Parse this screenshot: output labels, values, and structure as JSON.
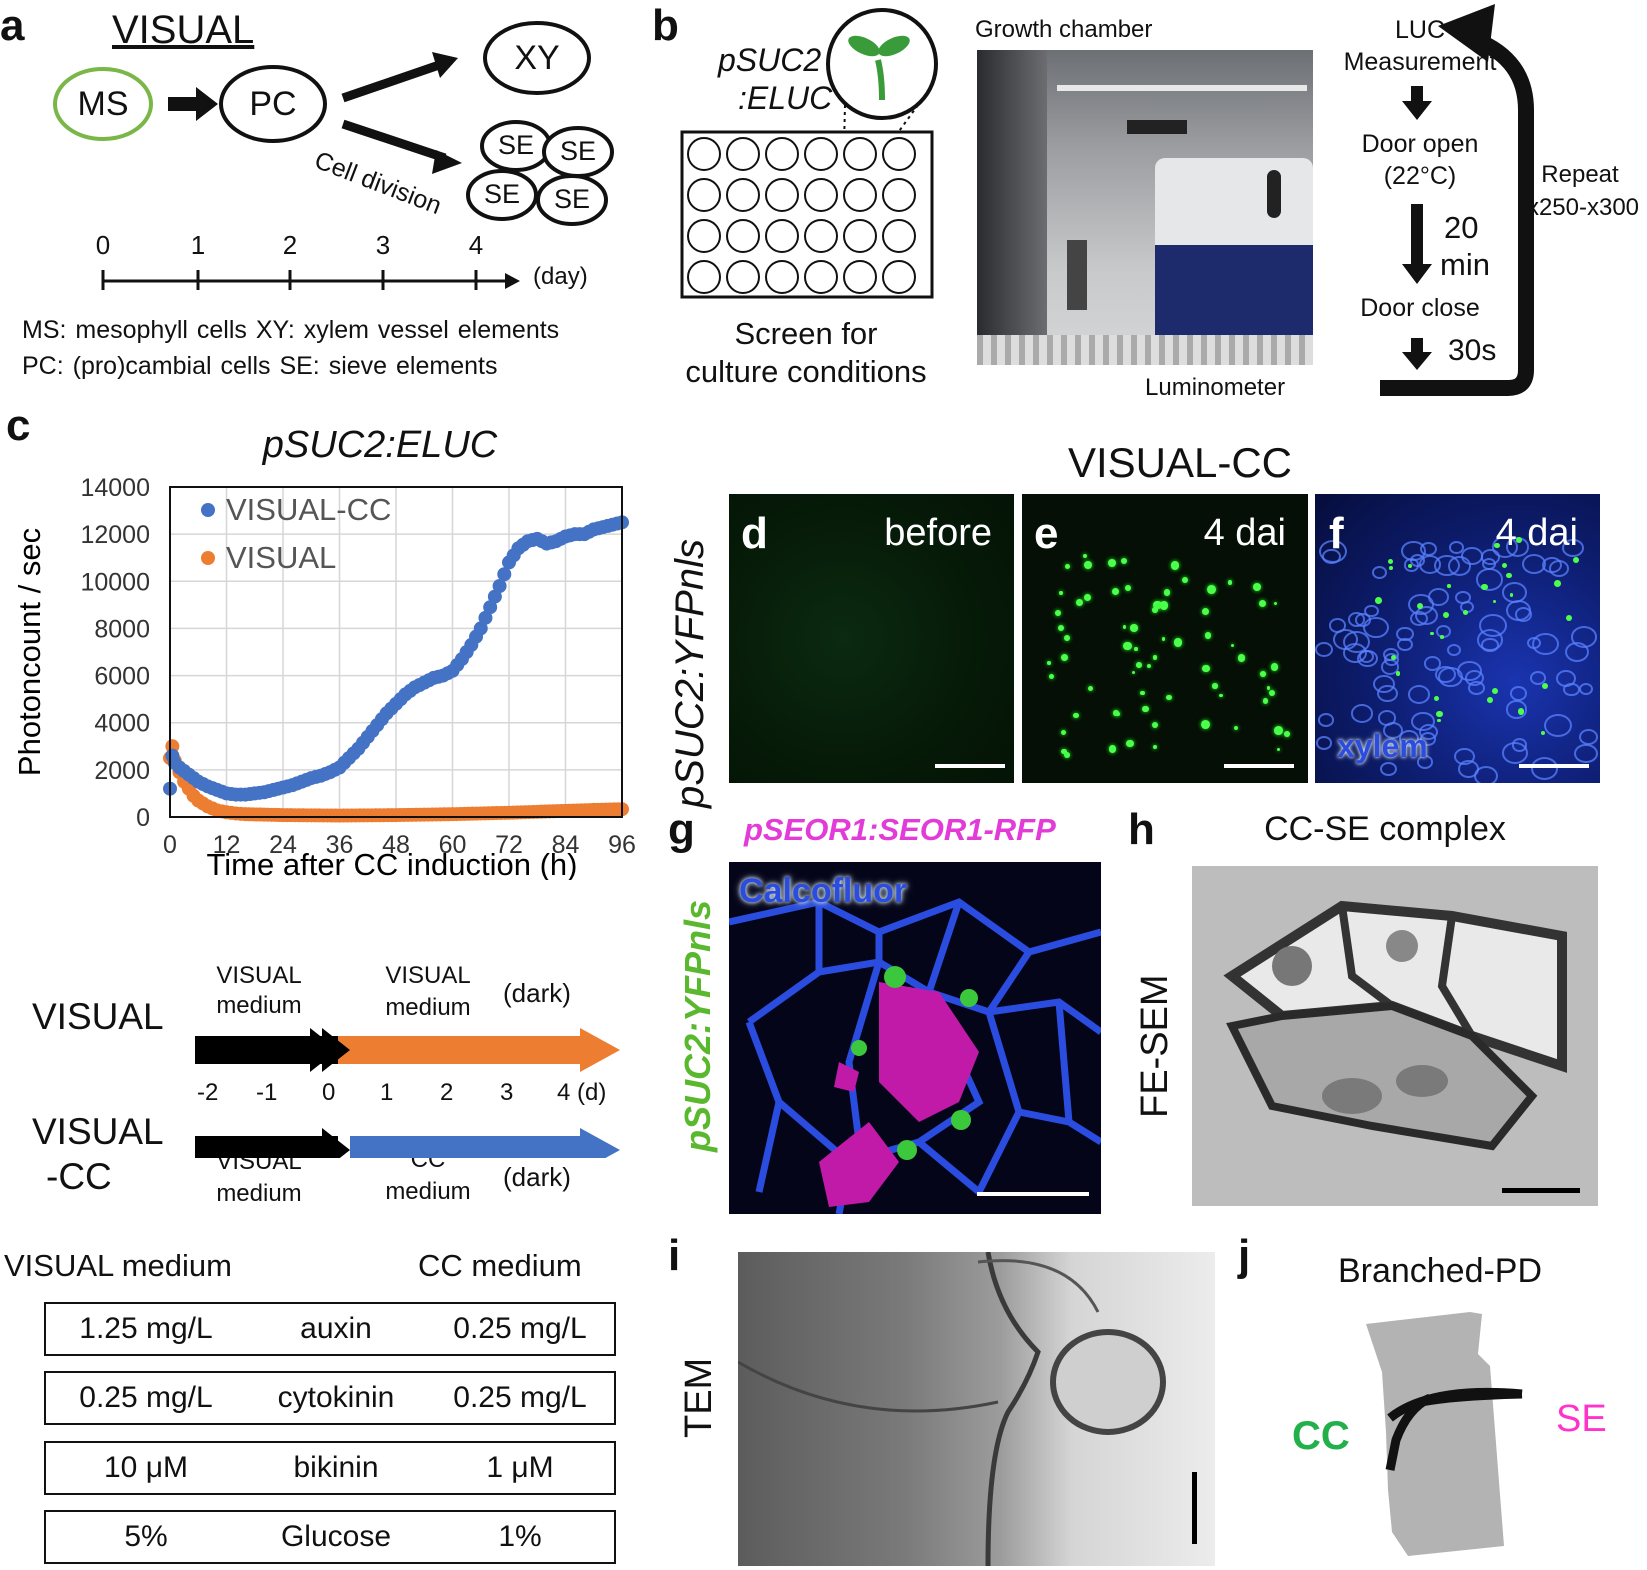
{
  "panel_labels": {
    "a": "a",
    "b": "b",
    "c": "c",
    "d": "d",
    "e": "e",
    "f": "f",
    "g": "g",
    "h": "h",
    "i": "i",
    "j": "j"
  },
  "panel_a": {
    "title": "VISUAL",
    "nodes": {
      "ms": "MS",
      "pc": "PC",
      "xy": "XY",
      "se": "SE"
    },
    "cell_division": "Cell division",
    "timeline_ticks": [
      "0",
      "1",
      "2",
      "3",
      "4"
    ],
    "timeline_unit": "(day)",
    "legend": [
      "MS: mesophyll cells XY: xylem vessel elements",
      "PC: (pro)cambial cells SE: sieve elements"
    ],
    "ms_color": "#7ab648"
  },
  "panel_b": {
    "construct_line1": "pSUC2",
    "construct_line2": ":ELUC",
    "plate_caption_line1": "Screen for",
    "plate_caption_line2": "culture conditions",
    "photo_top_label": "Growth chamber",
    "photo_bottom_label": "Luminometer",
    "cycle": {
      "step1_line1": "LUC",
      "step1_line2": "Measurement",
      "step2_line1": "Door open",
      "step2_line2": "(22°C)",
      "wait1_line1": "20",
      "wait1_line2": "min",
      "step3": "Door close",
      "wait2": "30s",
      "repeat_line1": "Repeat",
      "repeat_line2": "x250-x300"
    }
  },
  "panel_c": {
    "chart_data": {
      "type": "scatter",
      "title": "pSUC2:ELUC",
      "xlabel": "Time after CC induction (h)",
      "ylabel": "Photoncount / sec",
      "xlim": [
        0,
        96
      ],
      "ylim": [
        0,
        14000
      ],
      "x_ticks": [
        "0",
        "12",
        "24",
        "36",
        "48",
        "60",
        "72",
        "84",
        "96"
      ],
      "y_ticks": [
        "0",
        "2000",
        "4000",
        "6000",
        "8000",
        "10000",
        "12000",
        "14000"
      ],
      "grid": true,
      "legend_position": "top-left",
      "series": [
        {
          "name": "VISUAL-CC",
          "color": "#4472c4",
          "points": [
            [
              0,
              1200
            ],
            [
              0.5,
              2600
            ],
            [
              1,
              2300
            ],
            [
              2,
              2100
            ],
            [
              4,
              1800
            ],
            [
              6,
              1500
            ],
            [
              8,
              1300
            ],
            [
              10,
              1150
            ],
            [
              12,
              1000
            ],
            [
              14,
              950
            ],
            [
              16,
              950
            ],
            [
              18,
              1000
            ],
            [
              20,
              1050
            ],
            [
              22,
              1150
            ],
            [
              24,
              1250
            ],
            [
              26,
              1350
            ],
            [
              28,
              1500
            ],
            [
              30,
              1650
            ],
            [
              32,
              1750
            ],
            [
              34,
              1900
            ],
            [
              36,
              2100
            ],
            [
              38,
              2500
            ],
            [
              40,
              2900
            ],
            [
              42,
              3400
            ],
            [
              44,
              3900
            ],
            [
              46,
              4400
            ],
            [
              48,
              4800
            ],
            [
              50,
              5200
            ],
            [
              52,
              5500
            ],
            [
              54,
              5700
            ],
            [
              56,
              5900
            ],
            [
              58,
              6000
            ],
            [
              60,
              6200
            ],
            [
              62,
              6700
            ],
            [
              64,
              7300
            ],
            [
              66,
              8000
            ],
            [
              68,
              8900
            ],
            [
              70,
              9800
            ],
            [
              72,
              10800
            ],
            [
              74,
              11400
            ],
            [
              76,
              11700
            ],
            [
              78,
              11800
            ],
            [
              80,
              11600
            ],
            [
              82,
              11700
            ],
            [
              84,
              11900
            ],
            [
              86,
              12000
            ],
            [
              88,
              12000
            ],
            [
              90,
              12200
            ],
            [
              92,
              12300
            ],
            [
              94,
              12400
            ],
            [
              96,
              12500
            ]
          ]
        },
        {
          "name": "VISUAL",
          "color": "#ed7d31",
          "points": [
            [
              0,
              2500
            ],
            [
              0.5,
              3000
            ],
            [
              1,
              2400
            ],
            [
              2,
              1900
            ],
            [
              3,
              1500
            ],
            [
              4,
              1200
            ],
            [
              5,
              900
            ],
            [
              6,
              700
            ],
            [
              8,
              450
            ],
            [
              10,
              280
            ],
            [
              12,
              200
            ],
            [
              14,
              150
            ],
            [
              16,
              120
            ],
            [
              20,
              100
            ],
            [
              24,
              80
            ],
            [
              30,
              70
            ],
            [
              36,
              60
            ],
            [
              48,
              80
            ],
            [
              60,
              120
            ],
            [
              72,
              180
            ],
            [
              84,
              260
            ],
            [
              90,
              300
            ],
            [
              96,
              330
            ]
          ]
        }
      ]
    },
    "schedule": {
      "row1_label": "VISUAL",
      "row2_label_line1": "VISUAL",
      "row2_label_line2": "-CC",
      "pre_medium_line1": "VISUAL",
      "pre_medium_line2": "medium",
      "row1_medium_line1": "VISUAL",
      "row1_medium_line2": "medium",
      "row2_medium_line1": "CC",
      "row2_medium_line2": "medium",
      "dark": "(dark)",
      "ticks": [
        "-2",
        "-1",
        "0",
        "1",
        "2",
        "3",
        "4 (d)"
      ],
      "black": "#000000",
      "orange": "#ed7d31",
      "blue": "#4472c4"
    },
    "medium_table": {
      "left_header": "VISUAL medium",
      "right_header": "CC medium",
      "rows": [
        {
          "visual": "1.25 mg/L",
          "name": "auxin",
          "cc": "0.25 mg/L"
        },
        {
          "visual": "0.25 mg/L",
          "name": "cytokinin",
          "cc": "0.25 mg/L"
        },
        {
          "visual": "10 μM",
          "name": "bikinin",
          "cc": "1 μM"
        },
        {
          "visual": "5%",
          "name": "Glucose",
          "cc": "1%"
        }
      ]
    }
  },
  "panel_def": {
    "title": "VISUAL-CC",
    "side_label": "pSUC2:YFPnls",
    "d_text": "before",
    "e_text": "4 dai",
    "f_text": "4 dai",
    "f_overlay": "xylem"
  },
  "panel_g": {
    "top_label": "pSEOR1:SEOR1-RFP",
    "side_label": "pSUC2:YFPnls",
    "overlay": "Calcofluor",
    "magenta": "#e23bd8",
    "green": "#5ab82e",
    "blue": "#2a4de0"
  },
  "panel_h": {
    "title": "CC-SE complex",
    "side_label": "FE-SEM"
  },
  "panel_i": {
    "side_label": "TEM"
  },
  "panel_j": {
    "title": "Branched-PD",
    "cc": "CC",
    "se": "SE",
    "cc_color": "#22b04b",
    "se_color": "#ff33cc"
  }
}
